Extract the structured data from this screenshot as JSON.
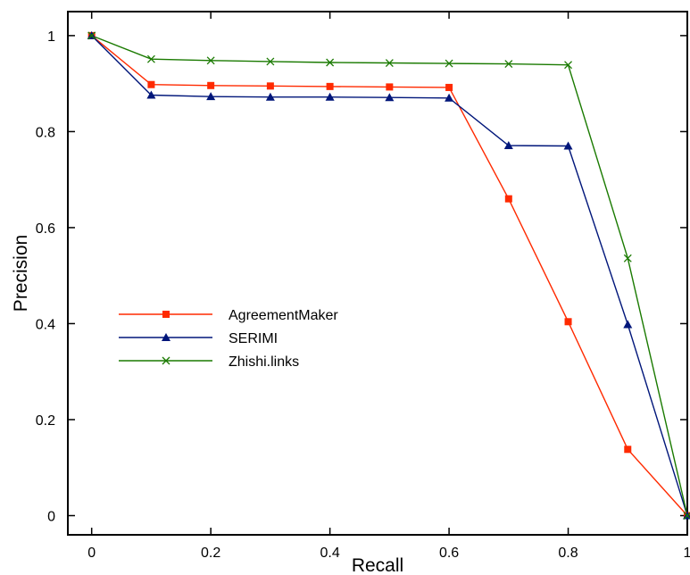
{
  "chart_data": {
    "type": "line",
    "title": "",
    "xlabel": "Recall",
    "ylabel": "Precision",
    "xlim": [
      -0.04,
      1.0
    ],
    "ylim": [
      -0.04,
      1.05
    ],
    "x_ticks": [
      0,
      0.2,
      0.4,
      0.6,
      0.8,
      1
    ],
    "x_tick_labels": [
      "0",
      "0.2",
      "0.4",
      "0.6",
      "0.8",
      "1"
    ],
    "y_ticks": [
      0,
      0.2,
      0.4,
      0.6,
      0.8,
      1
    ],
    "y_tick_labels": [
      "0",
      "0.2",
      "0.4",
      "0.6",
      "0.8",
      "1"
    ],
    "grid": false,
    "legend_position": "center-left",
    "x": [
      0,
      0.1,
      0.2,
      0.3,
      0.4,
      0.5,
      0.6,
      0.7,
      0.8,
      0.9,
      1.0
    ],
    "series": [
      {
        "name": "AgreementMaker",
        "color": "#ff2a00",
        "marker": "square",
        "values": [
          1.0,
          0.898,
          0.896,
          0.895,
          0.894,
          0.893,
          0.892,
          0.66,
          0.404,
          0.138,
          0.0
        ]
      },
      {
        "name": "SERIMI",
        "color": "#00167a",
        "marker": "triangle",
        "values": [
          1.0,
          0.876,
          0.873,
          0.872,
          0.872,
          0.871,
          0.87,
          0.771,
          0.77,
          0.398,
          0.0
        ]
      },
      {
        "name": "Zhishi.links",
        "color": "#1a7a00",
        "marker": "x",
        "values": [
          1.0,
          0.951,
          0.948,
          0.946,
          0.944,
          0.943,
          0.942,
          0.941,
          0.939,
          0.536,
          0.0
        ]
      }
    ]
  }
}
